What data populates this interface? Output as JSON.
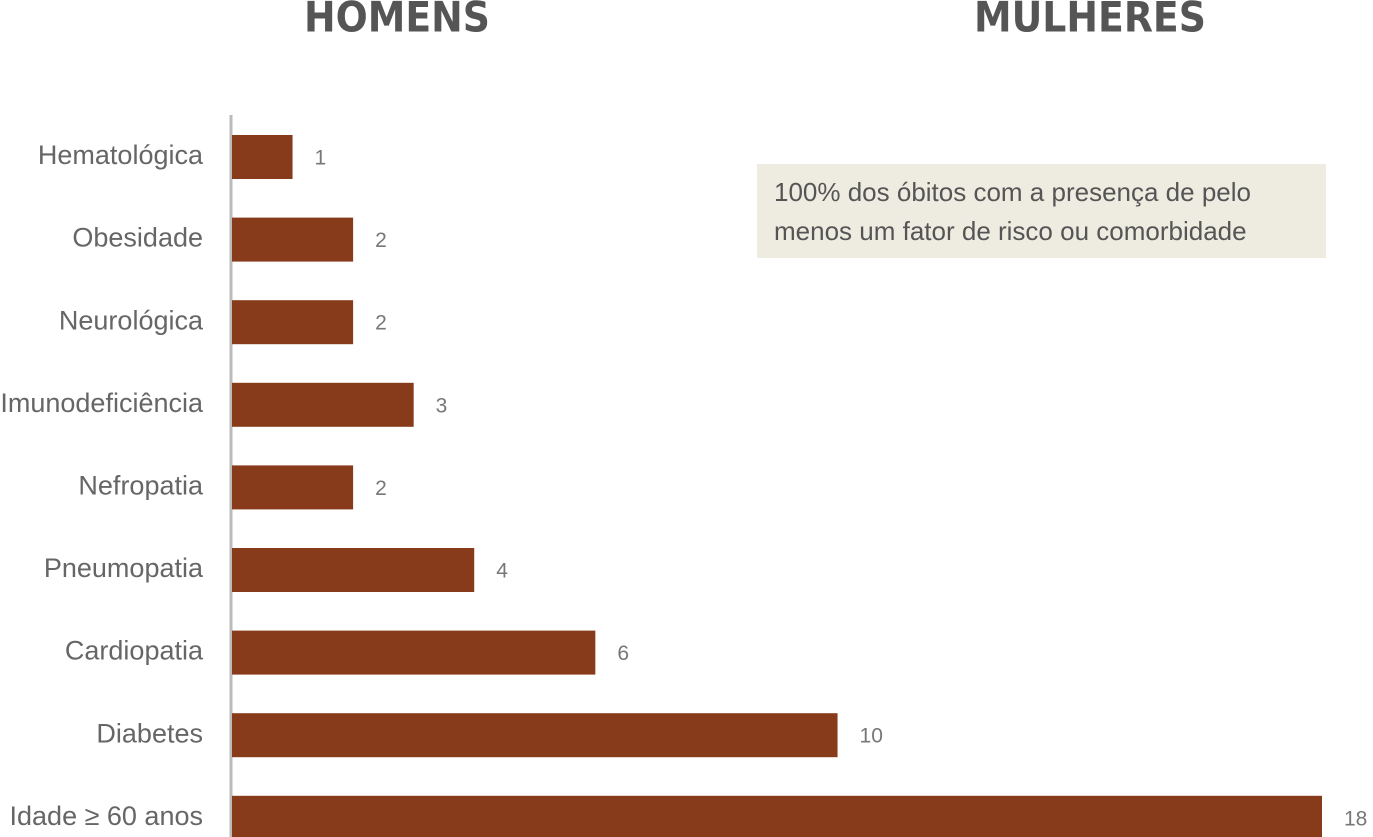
{
  "chart_data": {
    "type": "barh",
    "titles": [
      "HOMENS",
      "MULHERES"
    ],
    "annotation": [
      "100% dos óbitos com a presença de pelo",
      "menos um fator de risco ou comorbidade"
    ],
    "categories": [
      "Hematológica",
      "Obesidade",
      "Neurológica",
      "Imunodeficiência",
      "Nefropatia",
      "Pneumopatia",
      "Cardiopatia",
      "Diabetes",
      "Idade ≥ 60 anos"
    ],
    "values": [
      1,
      2,
      2,
      3,
      2,
      4,
      6,
      10,
      18
    ],
    "color": "#873b1a",
    "xlim": [
      0,
      18
    ]
  }
}
